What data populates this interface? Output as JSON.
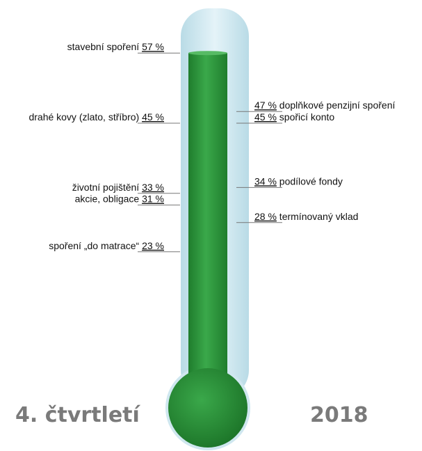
{
  "chart_data": {
    "type": "thermometer",
    "fill_level": 57,
    "scale": [
      0,
      100
    ],
    "left_items": [
      {
        "label": "stavební spoření",
        "value": 57,
        "value_text": "57 %"
      },
      {
        "label": "drahé kovy (zlato, stříbro)",
        "value": 45,
        "value_text": "45 %"
      },
      {
        "label": "životní pojištění",
        "value": 33,
        "value_text": "33 %"
      },
      {
        "label": "akcie, obligace",
        "value": 31,
        "value_text": "31 %"
      },
      {
        "label": "spoření „do matrace“",
        "value": 23,
        "value_text": "23 %"
      }
    ],
    "right_items": [
      {
        "label": "doplňkové penzijní spoření",
        "value": 47,
        "value_text": "47 %"
      },
      {
        "label": "spořicí konto",
        "value": 45,
        "value_text": "45 %"
      },
      {
        "label": "podílové fondy",
        "value": 34,
        "value_text": "34 %"
      },
      {
        "label": "termínovaný vklad",
        "value": 28,
        "value_text": "28 %"
      }
    ]
  },
  "footer": {
    "left_text": "4. čtvrtletí",
    "right_text": "2018"
  },
  "colors": {
    "fill": "#2e9a3c",
    "fill_dark": "#1e7a2c",
    "tube": "#cfe7ef",
    "leader": "#777777",
    "footer": "#7a7a7a"
  }
}
